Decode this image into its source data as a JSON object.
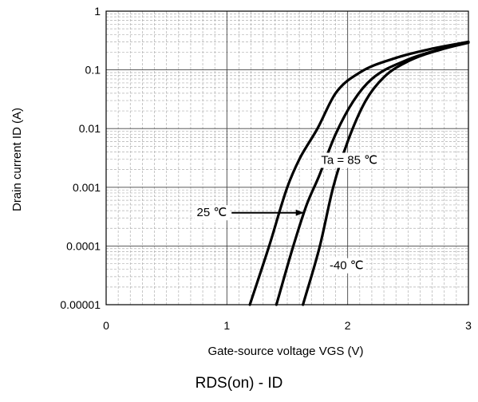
{
  "chart_data": {
    "type": "line",
    "title": "",
    "xlabel": "Gate-source voltage VGS (V)",
    "ylabel": "Drain current ID (A)",
    "xlim": [
      0,
      3
    ],
    "ylim": [
      1e-05,
      1
    ],
    "yscale": "log",
    "grid": true,
    "x_ticks": [
      0,
      1,
      2,
      3
    ],
    "x_tick_labels": [
      "0",
      "1",
      "2",
      "3"
    ],
    "y_ticks": [
      1,
      0.1,
      0.01,
      0.001,
      0.0001,
      1e-05
    ],
    "y_tick_labels": [
      "1",
      "0.1",
      "0.01",
      "0.001",
      "0.0001",
      "0.00001"
    ],
    "series": [
      {
        "name": "Ta = 85 ℃",
        "color": "#000000",
        "x": [
          1.19,
          1.35,
          1.5,
          1.6,
          1.75,
          1.9,
          2.1,
          2.4,
          2.7,
          3.0
        ],
        "y": [
          1e-05,
          0.0001,
          0.001,
          0.003,
          0.01,
          0.04,
          0.09,
          0.16,
          0.23,
          0.3
        ]
      },
      {
        "name": "25 ℃",
        "color": "#000000",
        "x": [
          1.41,
          1.55,
          1.66,
          1.76,
          1.9,
          2.05,
          2.2,
          2.5,
          2.75,
          3.0
        ],
        "y": [
          1e-05,
          0.0001,
          0.0005,
          0.0015,
          0.008,
          0.03,
          0.07,
          0.15,
          0.22,
          0.3
        ]
      },
      {
        "name": "-40 ℃",
        "color": "#000000",
        "x": [
          1.63,
          1.77,
          1.88,
          2.0,
          2.15,
          2.3,
          2.5,
          2.8,
          3.0
        ],
        "y": [
          1e-05,
          0.0001,
          0.001,
          0.006,
          0.03,
          0.075,
          0.14,
          0.23,
          0.29
        ]
      }
    ],
    "annotations": [
      {
        "text": "Ta = 85 ℃",
        "x": 1.78,
        "y": 0.0025
      },
      {
        "text": "25 ℃",
        "x": 0.75,
        "y": 0.00032
      },
      {
        "text": "-40 ℃",
        "x": 1.85,
        "y": 4e-05
      }
    ]
  },
  "caption": "RDS(on) - ID"
}
